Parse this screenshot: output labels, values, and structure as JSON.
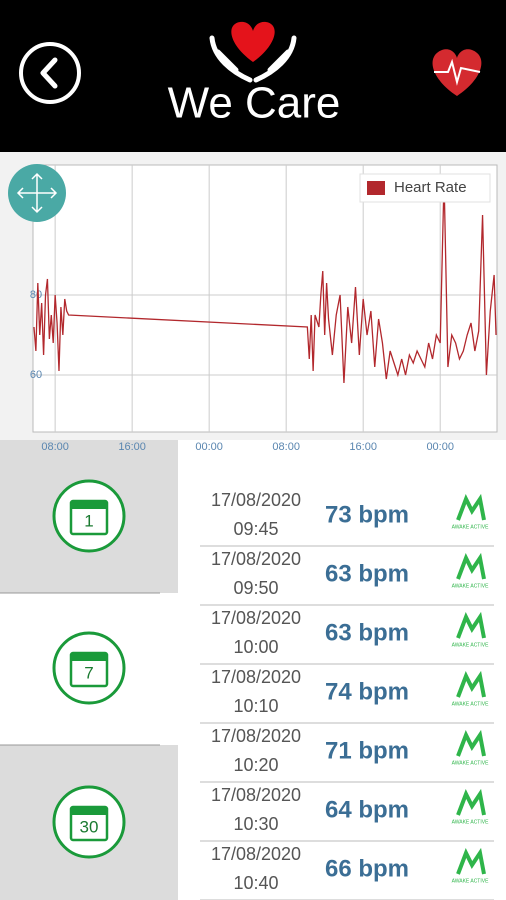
{
  "header": {
    "title": "We Care"
  },
  "chart_data": {
    "type": "line",
    "x": [
      -2.2,
      -2.0,
      -1.8,
      -1.6,
      -1.4,
      -1.2,
      -1.0,
      -0.8,
      -0.6,
      -0.4,
      -0.2,
      0.0,
      0.2,
      0.4,
      0.6,
      0.8,
      1.0,
      1.2,
      1.4,
      26.2,
      26.4,
      26.6,
      26.8,
      27.0,
      27.4,
      27.6,
      27.8,
      28.0,
      28.2,
      28.4,
      28.8,
      29.2,
      29.6,
      30.0,
      30.4,
      30.8,
      31.2,
      31.6,
      32.0,
      32.4,
      32.8,
      33.2,
      33.6,
      34.0,
      34.4,
      34.8,
      35.2,
      35.6,
      36.0,
      36.4,
      36.8,
      37.2,
      37.6,
      38.0,
      38.4,
      38.8,
      39.2,
      39.6,
      40.0,
      40.4,
      40.8,
      41.2,
      41.6,
      42.0,
      42.4,
      42.8,
      43.2,
      43.6,
      44.0,
      44.4,
      44.8,
      45.2,
      45.6,
      45.8
    ],
    "series": [
      {
        "name": "Heart Rate",
        "color": "#b2282d",
        "values": [
          72,
          66,
          83,
          70,
          78,
          65,
          80,
          84,
          69,
          75,
          68,
          80,
          73,
          61,
          77,
          70,
          79,
          76,
          75,
          72,
          64,
          75,
          61,
          75,
          72,
          80,
          86,
          70,
          83,
          74,
          65,
          75,
          80,
          58,
          77,
          68,
          82,
          65,
          79,
          70,
          76,
          62,
          74,
          68,
          59,
          66,
          63,
          60,
          64,
          60,
          65,
          63,
          66,
          64,
          62,
          68,
          64,
          70,
          68,
          109,
          62,
          70,
          68,
          64,
          66,
          70,
          73,
          66,
          71,
          100,
          60,
          76,
          85,
          70
        ]
      }
    ],
    "xlim": [
      -2.3,
      45.9
    ],
    "ylim": [
      45.75,
      112.5
    ],
    "xticks": [
      {
        "value": 0,
        "label": "08:00"
      },
      {
        "value": 8,
        "label": "16:00"
      },
      {
        "value": 16,
        "label": "00:00"
      },
      {
        "value": 24,
        "label": "08:00"
      },
      {
        "value": 32,
        "label": "16:00"
      },
      {
        "value": 40,
        "label": "00:00"
      }
    ],
    "yticks": [
      60,
      80
    ],
    "grid": true,
    "legend": "upper right"
  },
  "periods": [
    {
      "day": "1"
    },
    {
      "day": "7"
    },
    {
      "day": "30"
    }
  ],
  "readings": [
    {
      "date": "17/08/2020",
      "time": "09:45",
      "rate": "73 bpm",
      "activity": "AWAKE ACTIVE"
    },
    {
      "date": "17/08/2020",
      "time": "09:50",
      "rate": "63 bpm",
      "activity": "AWAKE ACTIVE"
    },
    {
      "date": "17/08/2020",
      "time": "10:00",
      "rate": "63 bpm",
      "activity": "AWAKE ACTIVE"
    },
    {
      "date": "17/08/2020",
      "time": "10:10",
      "rate": "74 bpm",
      "activity": "AWAKE ACTIVE"
    },
    {
      "date": "17/08/2020",
      "time": "10:20",
      "rate": "71 bpm",
      "activity": "AWAKE ACTIVE"
    },
    {
      "date": "17/08/2020",
      "time": "10:30",
      "rate": "64 bpm",
      "activity": "AWAKE ACTIVE"
    },
    {
      "date": "17/08/2020",
      "time": "10:40",
      "rate": "66 bpm",
      "activity": "AWAKE ACTIVE"
    }
  ]
}
